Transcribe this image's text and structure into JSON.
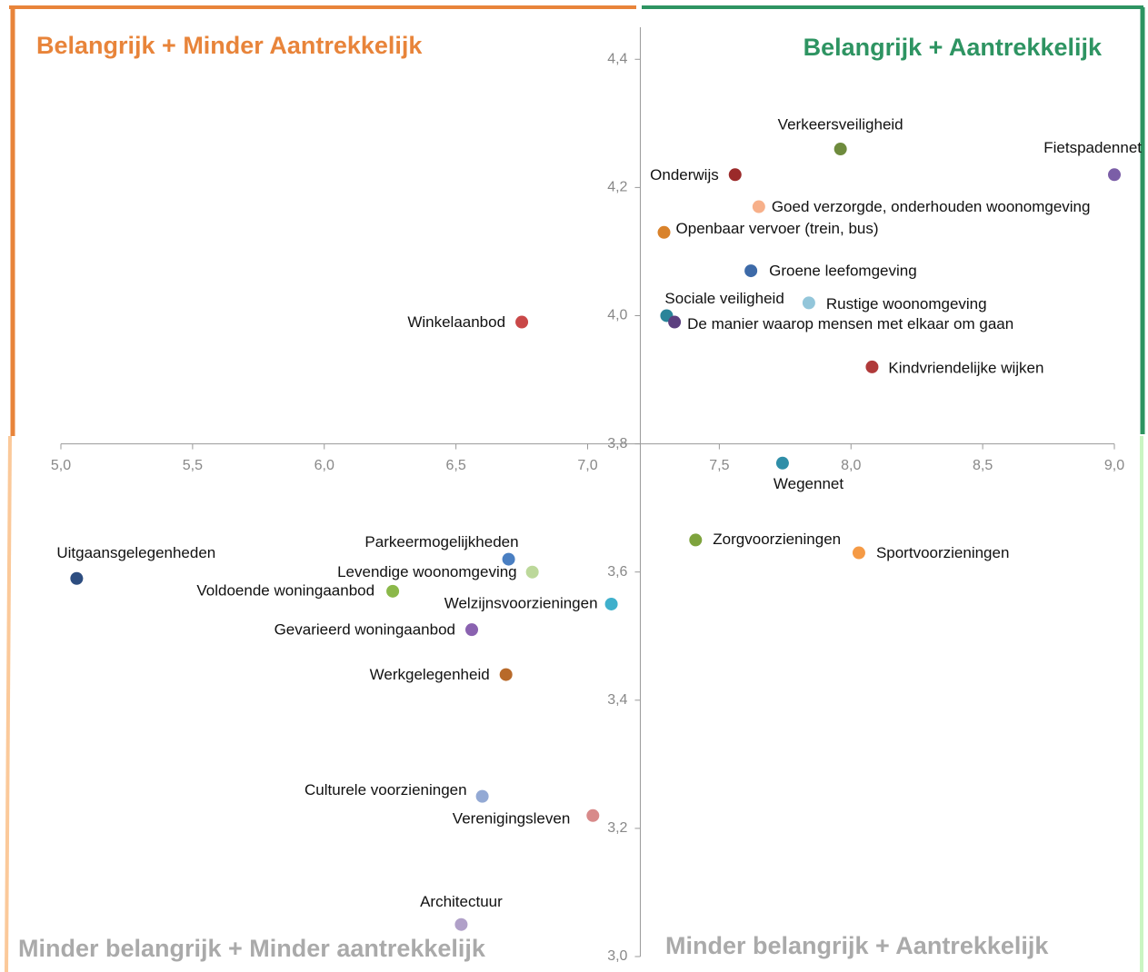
{
  "chart_data": {
    "type": "scatter",
    "quadrant_titles": [
      "Belangrijk + Minder Aantrekkelijk",
      "Belangrijk + Aantrekkelijk",
      "Minder belangrijk +  Minder aantrekkelijk",
      "Minder belangrijk + Aantrekkelijk"
    ],
    "quadrant_colors": [
      "#e8843a",
      "#2e9462",
      "#aaaaaa",
      "#aaaaaa"
    ],
    "xlim": [
      5.0,
      9.0
    ],
    "ylim": [
      3.0,
      4.45
    ],
    "xcross": 7.2,
    "ycross": 3.8,
    "xticks": [
      {
        "value": 5.0,
        "label": "5,0"
      },
      {
        "value": 5.5,
        "label": "5,5"
      },
      {
        "value": 6.0,
        "label": "6,0"
      },
      {
        "value": 6.5,
        "label": "6,5"
      },
      {
        "value": 7.0,
        "label": "7,0"
      },
      {
        "value": 7.5,
        "label": "7,5"
      },
      {
        "value": 8.0,
        "label": "8,0"
      },
      {
        "value": 8.5,
        "label": "8,5"
      },
      {
        "value": 9.0,
        "label": "9,0"
      }
    ],
    "yticks": [
      {
        "value": 3.0,
        "label": "3,0"
      },
      {
        "value": 3.2,
        "label": "3,2"
      },
      {
        "value": 3.4,
        "label": "3,4"
      },
      {
        "value": 3.6,
        "label": "3,6"
      },
      {
        "value": 3.8,
        "label": "3,8"
      },
      {
        "value": 4.0,
        "label": "4,0"
      },
      {
        "value": 4.2,
        "label": "4,2"
      },
      {
        "value": 4.4,
        "label": "4,4"
      }
    ],
    "points": [
      {
        "name": "Verkeersveiligheid",
        "x": 7.96,
        "y": 4.26,
        "color": "#6e8b3d"
      },
      {
        "name": "Fietspadennet",
        "x": 9.0,
        "y": 4.22,
        "color": "#7b5ea7"
      },
      {
        "name": "Onderwijs",
        "x": 7.56,
        "y": 4.22,
        "color": "#9b2a2a"
      },
      {
        "name": "Goed verzorgde, onderhouden woonomgeving",
        "x": 7.65,
        "y": 4.17,
        "color": "#f7b08a"
      },
      {
        "name": "Openbaar vervoer (trein, bus)",
        "x": 7.29,
        "y": 4.13,
        "color": "#d9822b"
      },
      {
        "name": "Groene leefomgeving",
        "x": 7.62,
        "y": 4.07,
        "color": "#3d6aa8"
      },
      {
        "name": "Sociale veiligheid",
        "x": 7.3,
        "y": 4.0,
        "color": "#2a8499"
      },
      {
        "name": "Rustige woonomgeving",
        "x": 7.84,
        "y": 4.02,
        "color": "#93c6da"
      },
      {
        "name": "De manier waarop mensen met elkaar om gaan",
        "x": 7.33,
        "y": 3.99,
        "color": "#5b3f7f"
      },
      {
        "name": "Kindvriendelijke wijken",
        "x": 8.08,
        "y": 3.92,
        "color": "#b03a3a"
      },
      {
        "name": "Winkelaanbod",
        "x": 6.75,
        "y": 3.99,
        "color": "#c94848"
      },
      {
        "name": "Wegennet",
        "x": 7.74,
        "y": 3.77,
        "color": "#2f8ea8"
      },
      {
        "name": "Zorgvoorzieningen",
        "x": 7.41,
        "y": 3.65,
        "color": "#7ea33d"
      },
      {
        "name": "Sportvoorzieningen",
        "x": 8.03,
        "y": 3.63,
        "color": "#f59a45"
      },
      {
        "name": "Uitgaansgelegenheden",
        "x": 5.06,
        "y": 3.59,
        "color": "#2d4d80"
      },
      {
        "name": "Parkeermogelijkheden",
        "x": 6.7,
        "y": 3.62,
        "color": "#4a7fc2"
      },
      {
        "name": "Levendige woonomgeving",
        "x": 6.79,
        "y": 3.6,
        "color": "#bcd89a"
      },
      {
        "name": "Voldoende woningaanbod",
        "x": 6.26,
        "y": 3.57,
        "color": "#8bb84a"
      },
      {
        "name": "Welzijnsvoorzieningen",
        "x": 7.09,
        "y": 3.55,
        "color": "#3fb0cc"
      },
      {
        "name": "Gevarieerd woningaanbod",
        "x": 6.56,
        "y": 3.51,
        "color": "#8a62b0"
      },
      {
        "name": "Werkgelegenheid",
        "x": 6.69,
        "y": 3.44,
        "color": "#b86a2a"
      },
      {
        "name": "Culturele voorzieningen",
        "x": 6.6,
        "y": 3.25,
        "color": "#93a9d4"
      },
      {
        "name": "Verenigingsleven",
        "x": 7.02,
        "y": 3.22,
        "color": "#d88a8a"
      },
      {
        "name": "Architectuur",
        "x": 6.52,
        "y": 3.05,
        "color": "#b0a0c8"
      }
    ]
  }
}
